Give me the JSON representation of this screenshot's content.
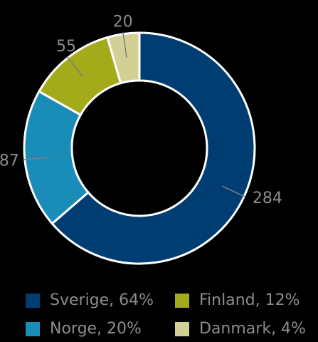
{
  "chart_data": {
    "type": "pie",
    "categories": [
      "Sverige",
      "Norge",
      "Finland",
      "Danmark"
    ],
    "values": [
      284,
      87,
      55,
      20
    ],
    "legend": [
      "Sverige, 64%",
      "Finland, 12%",
      "Norge, 20%",
      "Danmark, 4%"
    ],
    "colors": [
      "#003d73",
      "#1a8cb8",
      "#a4ab1a",
      "#d3d095"
    ],
    "legend_placement": "bottom"
  }
}
